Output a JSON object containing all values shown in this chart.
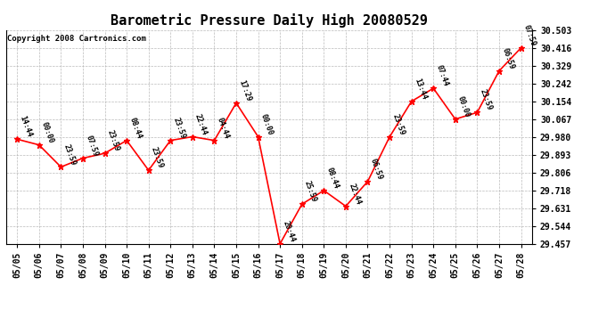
{
  "title": "Barometric Pressure Daily High 20080529",
  "copyright": "Copyright 2008 Cartronics.com",
  "dates": [
    "05/05",
    "05/06",
    "05/07",
    "05/08",
    "05/09",
    "05/10",
    "05/11",
    "05/12",
    "05/13",
    "05/14",
    "05/15",
    "05/16",
    "05/17",
    "05/18",
    "05/19",
    "05/20",
    "05/21",
    "05/22",
    "05/23",
    "05/24",
    "05/25",
    "05/26",
    "05/27",
    "05/28"
  ],
  "values": [
    29.969,
    29.941,
    29.833,
    29.876,
    29.9,
    29.963,
    29.817,
    29.963,
    29.981,
    29.963,
    30.146,
    29.981,
    29.457,
    29.651,
    29.718,
    29.641,
    29.762,
    29.98,
    30.154,
    30.218,
    30.067,
    30.1,
    30.303,
    30.416
  ],
  "times": [
    "14:44",
    "00:00",
    "23:59",
    "07:59",
    "23:59",
    "08:44",
    "23:59",
    "23:59",
    "22:44",
    "04:44",
    "17:29",
    "00:00",
    "20:44",
    "25:59",
    "08:44",
    "22:44",
    "06:59",
    "23:59",
    "13:44",
    "07:44",
    "00:00",
    "23:59",
    "06:59",
    "07:59"
  ],
  "ylim_min": 29.457,
  "ylim_max": 30.503,
  "ytick_values": [
    29.457,
    29.544,
    29.631,
    29.718,
    29.806,
    29.893,
    29.98,
    30.067,
    30.154,
    30.242,
    30.329,
    30.416,
    30.503
  ],
  "line_color": "red",
  "marker_color": "red",
  "background_color": "white",
  "grid_color": "#aaaaaa",
  "title_fontsize": 11,
  "label_fontsize": 7,
  "annotation_fontsize": 6,
  "copyright_fontsize": 6.5
}
